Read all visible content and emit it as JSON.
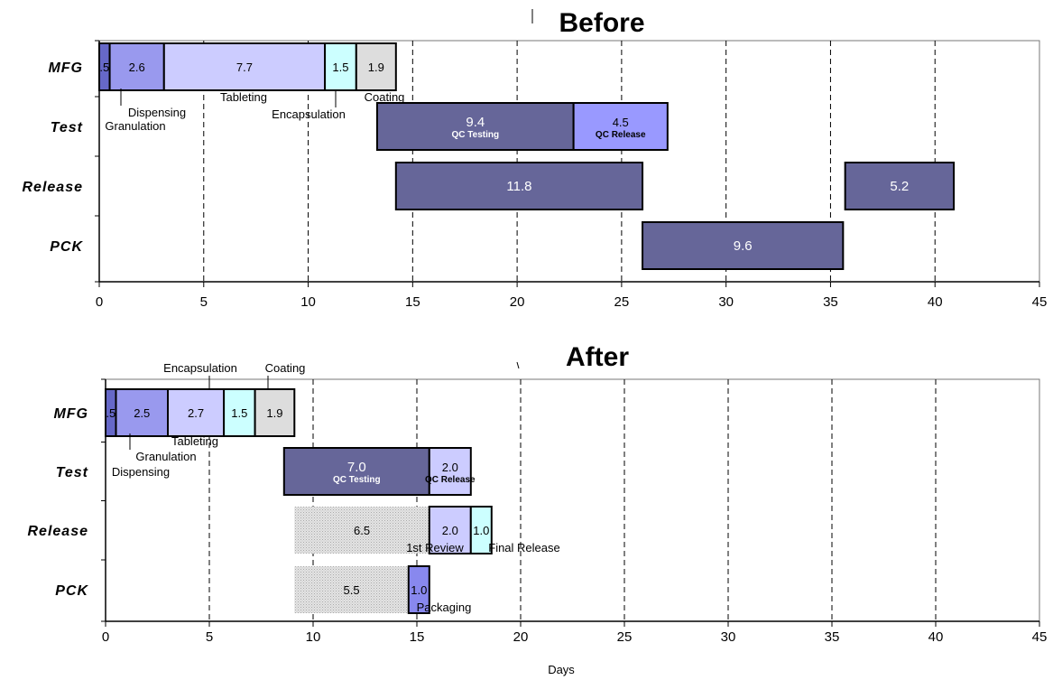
{
  "chart_data": [
    {
      "type": "gantt",
      "title": "Before",
      "xlabel": "",
      "xlim": [
        0,
        45
      ],
      "xticks": [
        "0",
        "5",
        "10",
        "15",
        "20",
        "25",
        "30",
        "35",
        "40",
        "45"
      ],
      "grid": "dashed vertical lines at every 5 days",
      "rows": [
        "MFG",
        "Test",
        "Release",
        "PCK"
      ],
      "bars": [
        {
          "row": "MFG",
          "start": 0,
          "duration": 0.5,
          "value_label": ".5",
          "color": "#6668c8"
        },
        {
          "row": "MFG",
          "start": 0.5,
          "duration": 2.6,
          "value_label": "2.6",
          "color": "#9999ee"
        },
        {
          "row": "MFG",
          "start": 3.1,
          "duration": 7.7,
          "value_label": "7.7",
          "color": "#ccccff"
        },
        {
          "row": "MFG",
          "start": 10.8,
          "duration": 1.5,
          "value_label": "1.5",
          "color": "#ccffff"
        },
        {
          "row": "MFG",
          "start": 12.3,
          "duration": 1.9,
          "value_label": "1.9",
          "color": "#dddddd"
        },
        {
          "row": "Test",
          "start": 13.3,
          "duration": 9.4,
          "value_label": "9.4",
          "sub_label": "QC Testing",
          "color": "#666699"
        },
        {
          "row": "Test",
          "start": 22.7,
          "duration": 4.5,
          "value_label": "4.5",
          "sub_label": "QC Release",
          "color": "#9999ff"
        },
        {
          "row": "Release",
          "start": 14.2,
          "duration": 11.8,
          "value_label": "11.8",
          "color": "#666699"
        },
        {
          "row": "Release",
          "start": 35.7,
          "duration": 5.2,
          "value_label": "5.2",
          "color": "#666699"
        },
        {
          "row": "PCK",
          "start": 26.0,
          "duration": 9.6,
          "value_label": "9.6",
          "color": "#666699"
        }
      ],
      "annotations": [
        "Dispensing",
        "Granulation",
        "Tableting",
        "Encapsulation",
        "Coating"
      ]
    },
    {
      "type": "gantt",
      "title": "After",
      "xlabel": "Days",
      "xlim": [
        0,
        45
      ],
      "xticks": [
        "0",
        "5",
        "10",
        "15",
        "20",
        "25",
        "30",
        "35",
        "40",
        "45"
      ],
      "grid": "dashed vertical lines at every 5 days",
      "rows": [
        "MFG",
        "Test",
        "Release",
        "PCK"
      ],
      "bars": [
        {
          "row": "MFG",
          "start": 0,
          "duration": 0.5,
          "value_label": ".5",
          "color": "#6668c8"
        },
        {
          "row": "MFG",
          "start": 0.5,
          "duration": 2.5,
          "value_label": "2.5",
          "color": "#9999ee"
        },
        {
          "row": "MFG",
          "start": 3.0,
          "duration": 2.7,
          "value_label": "2.7",
          "color": "#ccccff"
        },
        {
          "row": "MFG",
          "start": 5.7,
          "duration": 1.5,
          "value_label": "1.5",
          "color": "#ccffff"
        },
        {
          "row": "MFG",
          "start": 7.2,
          "duration": 1.9,
          "value_label": "1.9",
          "color": "#dddddd"
        },
        {
          "row": "Test",
          "start": 8.6,
          "duration": 7.0,
          "value_label": "7.0",
          "sub_label": "QC Testing",
          "color": "#666699"
        },
        {
          "row": "Test",
          "start": 15.6,
          "duration": 2.0,
          "value_label": "2.0",
          "sub_label": "QC Release",
          "color": "#ccccff"
        },
        {
          "row": "Release",
          "start": 9.1,
          "duration": 6.5,
          "value_label": "6.5",
          "color": "#dddddd",
          "pattern": "dotted-no-border"
        },
        {
          "row": "Release",
          "start": 15.6,
          "duration": 2.0,
          "value_label": "2.0",
          "color": "#ccccff"
        },
        {
          "row": "Release",
          "start": 17.6,
          "duration": 1.0,
          "value_label": "1.0",
          "color": "#ccffff"
        },
        {
          "row": "PCK",
          "start": 9.1,
          "duration": 5.5,
          "value_label": "5.5",
          "color": "#dddddd",
          "pattern": "dotted-no-border"
        },
        {
          "row": "PCK",
          "start": 14.6,
          "duration": 1.0,
          "value_label": "1.0",
          "color": "#8888ee"
        }
      ],
      "annotations": [
        "Encapsulation",
        "Coating",
        "Tableting",
        "Granulation",
        "Dispensing",
        "1st Review",
        "Final Release",
        "Packaging"
      ]
    }
  ],
  "colors": {
    "axis": "#000000",
    "grid": "#000000",
    "border": "#000000"
  }
}
